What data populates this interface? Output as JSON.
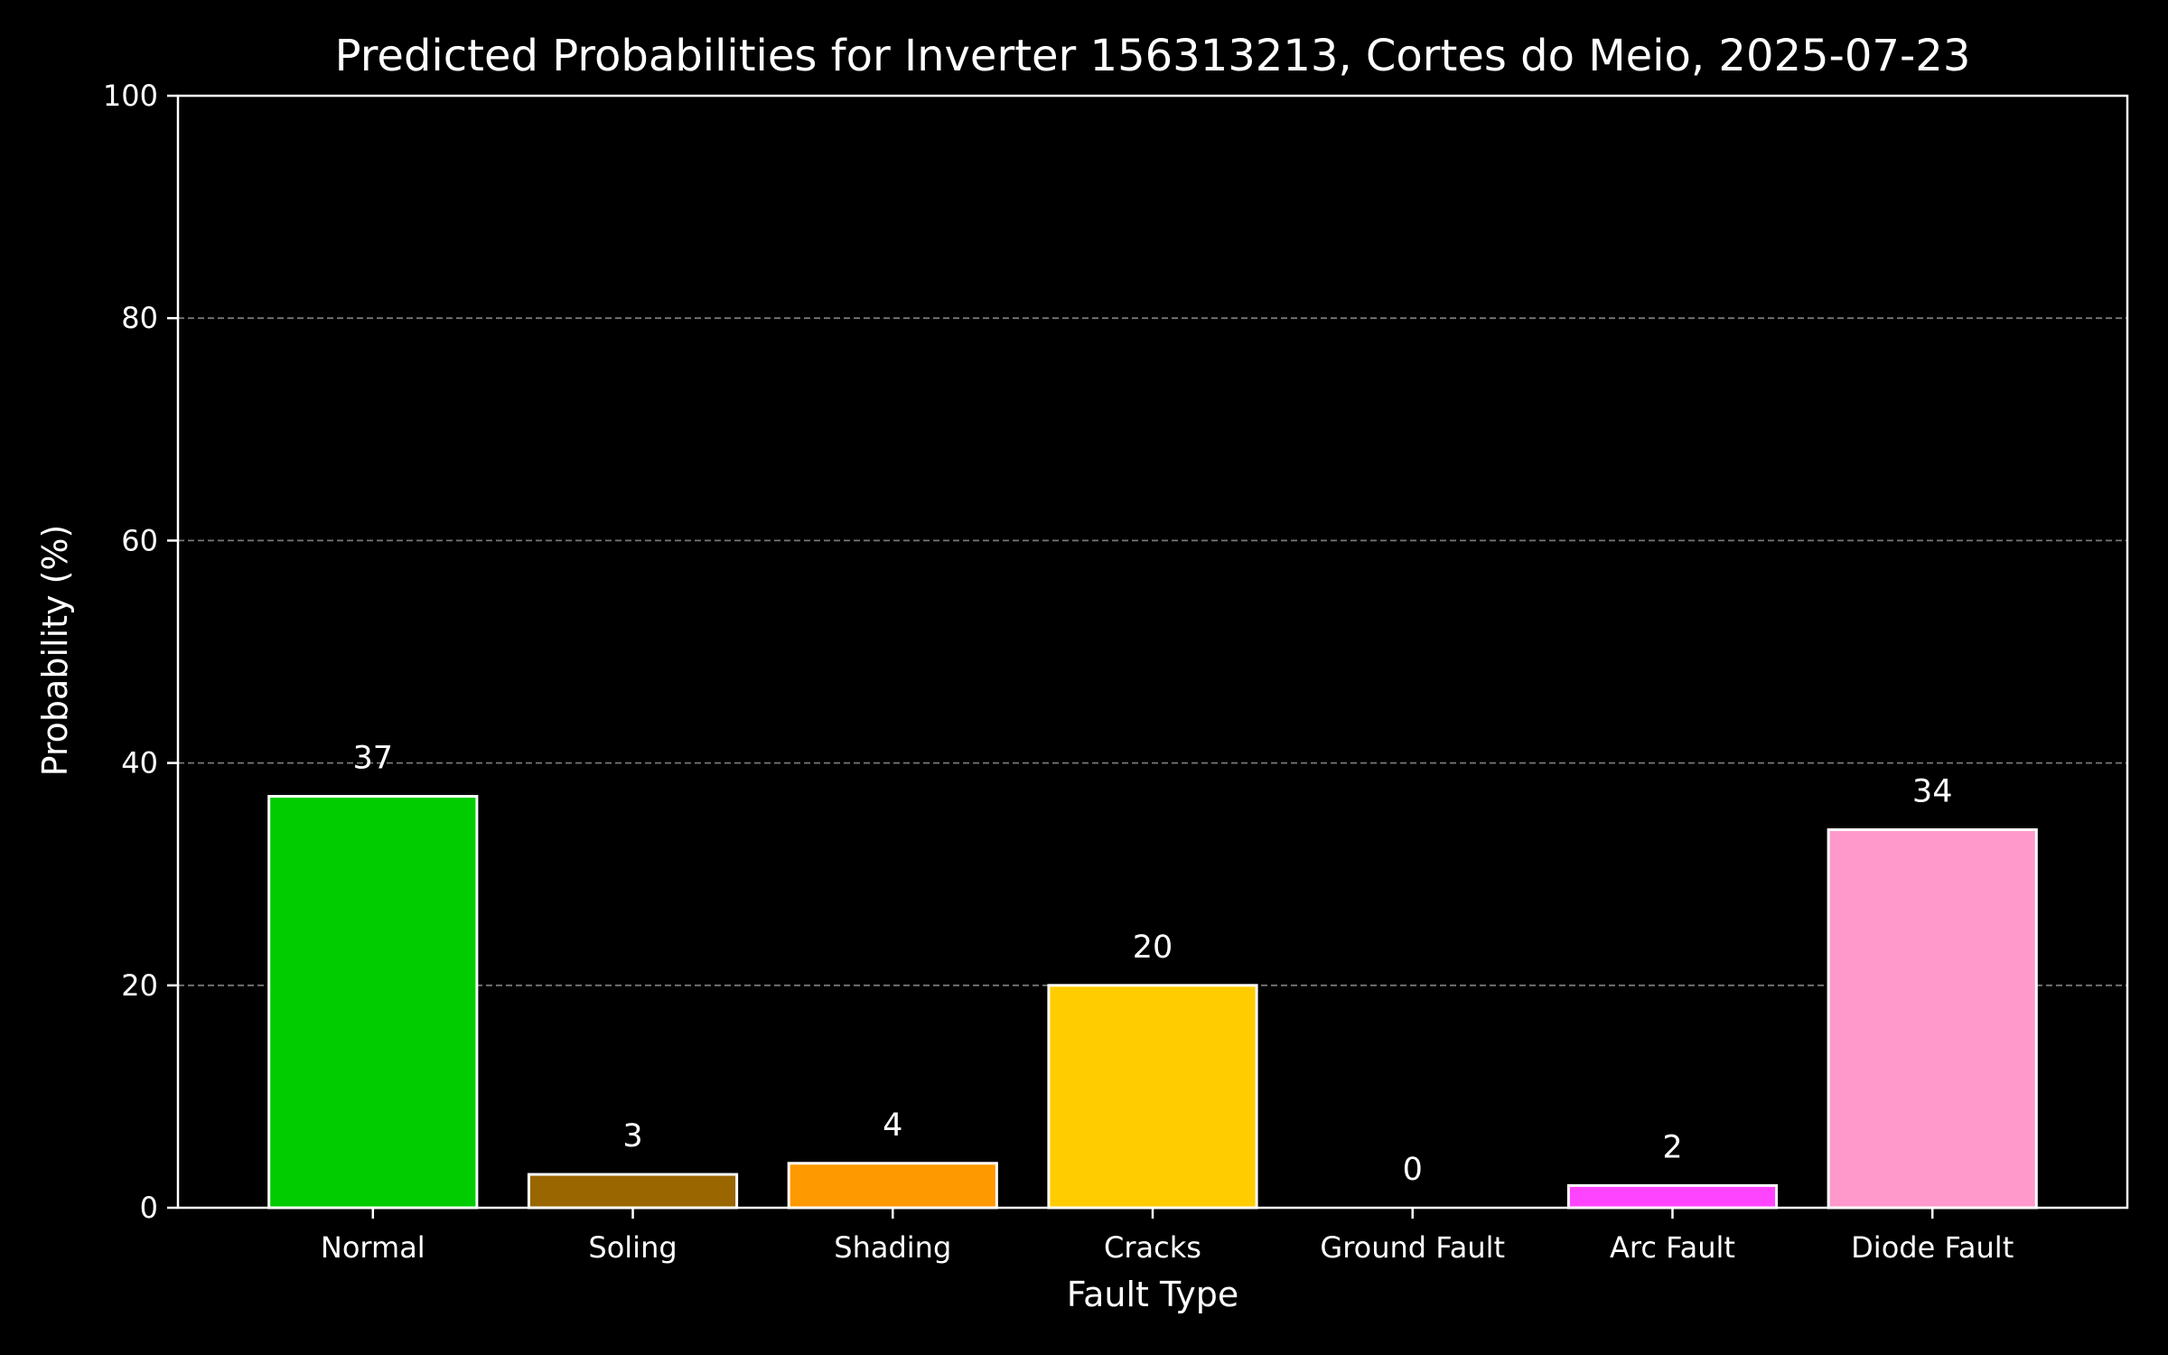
{
  "chart_data": {
    "type": "bar",
    "title": "Predicted Probabilities for Inverter 156313213, Cortes do Meio, 2025-07-23",
    "xlabel": "Fault Type",
    "ylabel": "Probability (%)",
    "categories": [
      "Normal",
      "Soling",
      "Shading",
      "Cracks",
      "Ground Fault",
      "Arc Fault",
      "Diode Fault"
    ],
    "values": [
      37,
      3,
      4,
      20,
      0,
      2,
      34
    ],
    "value_labels": [
      "37",
      "3",
      "4",
      "20",
      "0",
      "2",
      "34"
    ],
    "colors": [
      "#00cc00",
      "#996600",
      "#ff9900",
      "#ffcc00",
      "#ffffff",
      "#ff44ff",
      "#ff99cc"
    ],
    "ylim": [
      0,
      100
    ],
    "yticks": [
      0,
      20,
      40,
      60,
      80,
      100
    ],
    "ytick_labels": [
      "0",
      "20",
      "40",
      "60",
      "80",
      "100"
    ],
    "grid": "y-dashed",
    "legend": "none",
    "theme": {
      "background": "#000000",
      "foreground": "#ffffff",
      "grid_color": "#777777",
      "bar_edge": "#ffffff"
    }
  }
}
